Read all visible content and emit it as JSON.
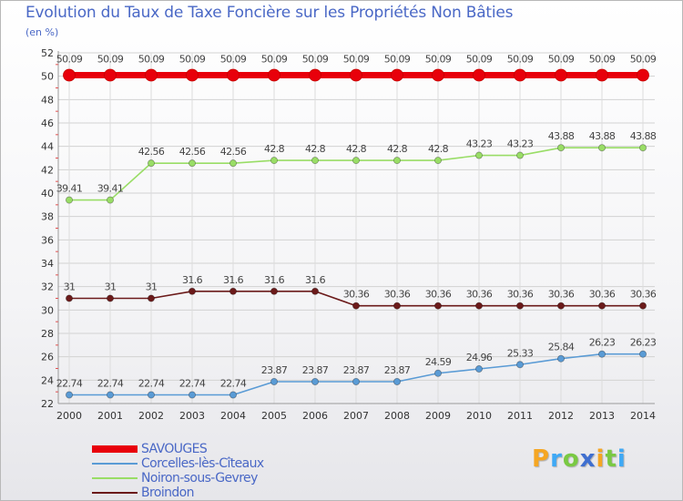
{
  "chart_data": {
    "type": "line",
    "title": "Evolution du Taux de Taxe Foncière sur les Propriétés Non Bâties",
    "unit_label": "(en %)",
    "xlabel": "",
    "ylabel": "",
    "x": [
      2000,
      2001,
      2002,
      2003,
      2004,
      2005,
      2006,
      2007,
      2008,
      2009,
      2010,
      2011,
      2012,
      2013,
      2014
    ],
    "x_tick_labels": [
      "2000",
      "2001",
      "2002",
      "2003",
      "2004",
      "2005",
      "2006",
      "2007",
      "2008",
      "2009",
      "2010",
      "2011",
      "2012",
      "2013",
      "2014"
    ],
    "ylim": [
      22,
      52
    ],
    "y_ticks": [
      22,
      24,
      26,
      28,
      30,
      32,
      34,
      36,
      38,
      40,
      42,
      44,
      46,
      48,
      50,
      52
    ],
    "y_tick_labels": [
      "22",
      "24",
      "26",
      "28",
      "30",
      "32",
      "34",
      "36",
      "38",
      "40",
      "42",
      "44",
      "46",
      "48",
      "50",
      "52"
    ],
    "grid": true,
    "legend_placement": "bottom-left",
    "series": [
      {
        "name": "SAVOUGES",
        "color": "#e8000b",
        "values": [
          50.09,
          50.09,
          50.09,
          50.09,
          50.09,
          50.09,
          50.09,
          50.09,
          50.09,
          50.09,
          50.09,
          50.09,
          50.09,
          50.09,
          50.09
        ],
        "labels": [
          "50.09",
          "50.09",
          "50.09",
          "50.09",
          "50.09",
          "50.09",
          "50.09",
          "50.09",
          "50.09",
          "50.09",
          "50.09",
          "50.09",
          "50.09",
          "50.09",
          "50.09"
        ]
      },
      {
        "name": "Corcelles-lès-Cîteaux",
        "color": "#5a9bd5",
        "values": [
          22.74,
          22.74,
          22.74,
          22.74,
          22.74,
          23.87,
          23.87,
          23.87,
          23.87,
          24.59,
          24.96,
          25.33,
          25.84,
          26.23,
          26.23
        ],
        "labels": [
          "22.74",
          "22.74",
          "22.74",
          "22.74",
          "22.74",
          "23.87",
          "23.87",
          "23.87",
          "23.87",
          "24.59",
          "24.96",
          "25.33",
          "25.84",
          "26.23",
          "26.23"
        ]
      },
      {
        "name": "Noiron-sous-Gevrey",
        "color": "#99dd66",
        "values": [
          39.41,
          39.41,
          42.56,
          42.56,
          42.56,
          42.8,
          42.8,
          42.8,
          42.8,
          42.8,
          43.23,
          43.23,
          43.88,
          43.88,
          43.88
        ],
        "labels": [
          "39.41",
          "39.41",
          "42.56",
          "42.56",
          "42.56",
          "42.8",
          "42.8",
          "42.8",
          "42.8",
          "42.8",
          "43.23",
          "43.23",
          "43.88",
          "43.88",
          "43.88"
        ]
      },
      {
        "name": "Broindon",
        "color": "#6b1a1a",
        "values": [
          31,
          31,
          31,
          31.6,
          31.6,
          31.6,
          31.6,
          30.36,
          30.36,
          30.36,
          30.36,
          30.36,
          30.36,
          30.36,
          30.36
        ],
        "labels": [
          "31",
          "31",
          "31",
          "31.6",
          "31.6",
          "31.6",
          "31.6",
          "30.36",
          "30.36",
          "30.36",
          "30.36",
          "30.36",
          "30.36",
          "30.36",
          "30.36"
        ]
      }
    ]
  },
  "brand": {
    "letters": [
      "P",
      "r",
      "o",
      "x",
      "i",
      "t",
      "i"
    ],
    "colors": [
      "#f5a623",
      "#3fa9f5",
      "#7ac943",
      "#3f6fd0",
      "#f5a623",
      "#7ac943",
      "#3fa9f5"
    ]
  }
}
